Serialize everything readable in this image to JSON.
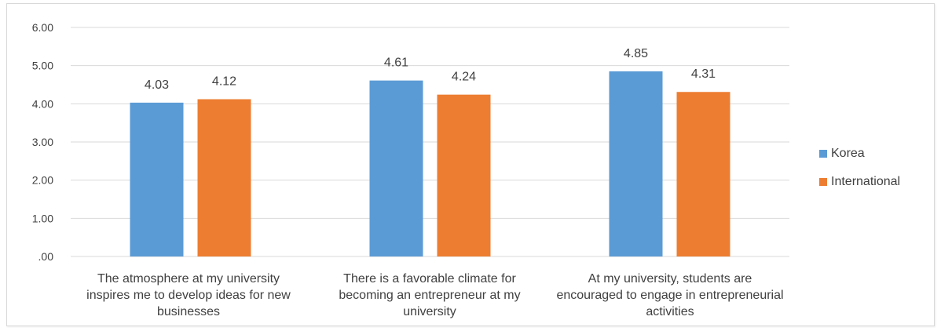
{
  "chart_data": {
    "type": "bar",
    "categories": [
      "The atmosphere at my university inspires me to develop ideas for new businesses",
      "There is a favorable climate for becoming an entrepreneur at my university",
      "At my university, students are encouraged to engage in entrepreneurial activities"
    ],
    "series": [
      {
        "name": "Korea",
        "color": "#5b9bd5",
        "values": [
          4.03,
          4.61,
          4.85
        ],
        "value_labels": [
          "4.03",
          "4.61",
          "4.85"
        ]
      },
      {
        "name": "International",
        "color": "#ed7d31",
        "values": [
          4.12,
          4.24,
          4.31
        ],
        "value_labels": [
          "4.12",
          "4.24",
          "4.31"
        ]
      }
    ],
    "y_ticks": [
      ".00",
      "1.00",
      "2.00",
      "3.00",
      "4.00",
      "5.00",
      "6.00"
    ],
    "ylim": [
      0,
      6
    ],
    "grid": true,
    "legend_position": "right"
  }
}
